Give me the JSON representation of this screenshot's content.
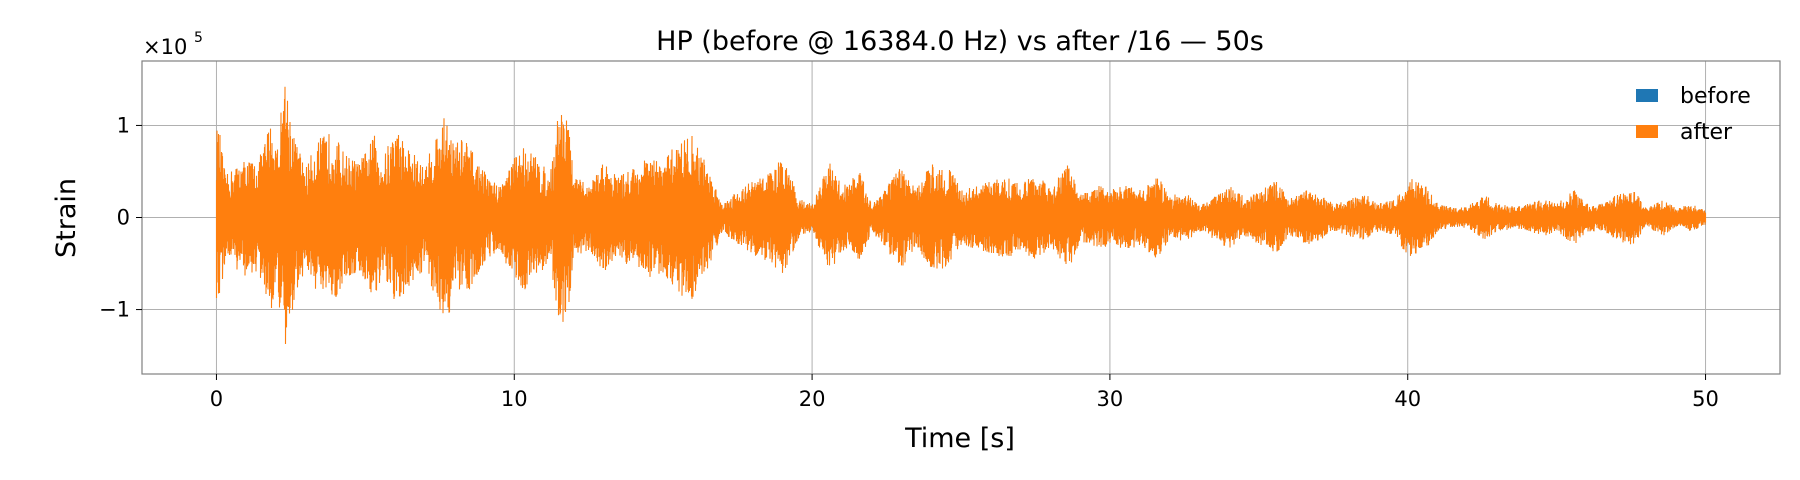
{
  "chart_data": {
    "type": "line",
    "title": "HP (before @ 16384.0 Hz) vs after /16 — 50s",
    "xlabel": "Time [s]",
    "ylabel": "Strain",
    "y_scale_label": "×10",
    "y_scale_exponent": "5",
    "xlim": [
      -2.5,
      52.5
    ],
    "ylim": [
      -170000,
      170000
    ],
    "x_ticks": [
      0,
      10,
      20,
      30,
      40,
      50
    ],
    "x_tick_labels": [
      "0",
      "10",
      "20",
      "30",
      "40",
      "50"
    ],
    "y_ticks": [
      -100000,
      0,
      100000
    ],
    "y_tick_labels": [
      "−1",
      "0",
      "1"
    ],
    "grid": true,
    "legend_position": "top-right",
    "x_range": [
      0,
      50
    ],
    "envelope": {
      "t": [
        0,
        0.1,
        0.3,
        0.6,
        1.0,
        1.4,
        1.8,
        2.05,
        2.3,
        2.6,
        3.0,
        3.4,
        3.9,
        4.3,
        4.8,
        5.3,
        5.6,
        6.0,
        6.5,
        7.0,
        7.4,
        7.75,
        8.0,
        8.3,
        8.7,
        9.1,
        9.5,
        9.8,
        10.3,
        10.8,
        11.2,
        11.5,
        11.75,
        12.0,
        12.5,
        13.0,
        13.5,
        14.0,
        14.5,
        15.0,
        15.5,
        16.0,
        16.5,
        17.0,
        17.5,
        18.0,
        18.6,
        19.0,
        19.6,
        20.0,
        20.6,
        21.0,
        21.6,
        22.0,
        22.6,
        23.0,
        23.5,
        24.0,
        24.6,
        25.0,
        25.6,
        26.0,
        26.6,
        27.0,
        27.6,
        28.0,
        28.6,
        29.0,
        29.6,
        30.0,
        30.6,
        31.0,
        31.6,
        32.0,
        32.6,
        33.0,
        33.6,
        34.0,
        34.6,
        35.0,
        35.6,
        36.0,
        36.6,
        37.0,
        37.6,
        38.0,
        38.6,
        39.0,
        39.6,
        40.0,
        40.6,
        41.0,
        41.6,
        42.0,
        42.6,
        43.0,
        43.6,
        44.0,
        44.6,
        45.0,
        45.6,
        46.0,
        46.6,
        47.0,
        47.6,
        48.0,
        48.6,
        49.0,
        49.5,
        50.0
      ],
      "amp": [
        98000,
        95000,
        45000,
        55000,
        65000,
        60000,
        105000,
        80000,
        160000,
        90000,
        55000,
        85000,
        95000,
        70000,
        60000,
        90000,
        65000,
        100000,
        75000,
        55000,
        95000,
        115000,
        80000,
        90000,
        65000,
        45000,
        35000,
        55000,
        80000,
        65000,
        45000,
        125000,
        120000,
        45000,
        35000,
        60000,
        45000,
        55000,
        65000,
        60000,
        85000,
        90000,
        55000,
        15000,
        30000,
        40000,
        50000,
        65000,
        20000,
        15000,
        60000,
        35000,
        50000,
        15000,
        40000,
        55000,
        30000,
        60000,
        55000,
        30000,
        35000,
        40000,
        45000,
        35000,
        50000,
        30000,
        60000,
        25000,
        35000,
        30000,
        35000,
        30000,
        45000,
        25000,
        25000,
        15000,
        25000,
        35000,
        20000,
        30000,
        40000,
        20000,
        30000,
        25000,
        15000,
        20000,
        25000,
        15000,
        20000,
        45000,
        35000,
        15000,
        10000,
        12000,
        25000,
        15000,
        12000,
        15000,
        20000,
        15000,
        30000,
        15000,
        15000,
        25000,
        30000,
        10000,
        20000,
        10000,
        15000,
        8000
      ]
    },
    "series": [
      {
        "name": "before",
        "color": "#1f77b4"
      },
      {
        "name": "after",
        "color": "#ff7f0e"
      }
    ]
  }
}
